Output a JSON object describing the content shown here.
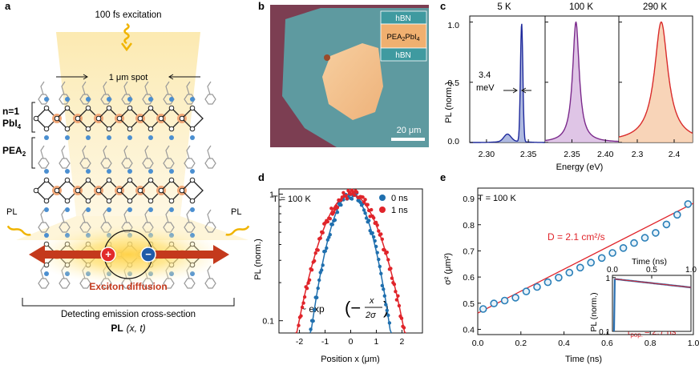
{
  "panels": {
    "a": {
      "letter": "a",
      "excitation": "100 fs excitation",
      "spot": "1 μm spot",
      "layer_n1": "n=1",
      "layer_pbi": "PbI",
      "layer_pbi_sub": "4",
      "layer_pea": "PEA",
      "layer_pea_sub": "2",
      "pl_left": "PL",
      "pl_right": "PL",
      "diffusion": "Exciton diffusion",
      "detecting": "Detecting emission cross-section",
      "pl_formula_bold": "PL",
      "pl_formula_rest": "(x, t)",
      "plus": "+",
      "minus": "−"
    },
    "b": {
      "letter": "b",
      "hbn_top": "hBN",
      "pea_label": "PEA",
      "pea_sub1": "2",
      "pea_mid": "PbI",
      "pea_sub2": "4",
      "hbn_bottom": "hBN",
      "scale_bar": "20 μm"
    },
    "c": {
      "letter": "c",
      "temps": [
        "5 K",
        "100 K",
        "290 K"
      ],
      "ylabel": "PL (norm.)",
      "xlabel": "Energy (eV)",
      "yticks": [
        "0.0",
        "0.5",
        "1.0"
      ],
      "xticks_5K": [
        "2.30",
        "2.35"
      ],
      "xticks_100K": [
        "2.35",
        "2.40"
      ],
      "xticks_290K": [
        "2.3",
        "2.4"
      ],
      "fwhm_value": "3.4",
      "fwhm_unit": "meV",
      "colors": [
        "#1f2a9c",
        "#7b2a8c",
        "#d92b2b"
      ]
    },
    "d": {
      "letter": "d",
      "temp": "T = 100 K",
      "legend": [
        "0 ns",
        "1 ns"
      ],
      "legend_colors": [
        "#1f6fae",
        "#e0242a"
      ],
      "ylabel": "PL (norm.)",
      "xlabel": "Position x (μm)",
      "yticks": [
        "1",
        "0.1"
      ],
      "xticks": [
        "-2",
        "-1",
        "0",
        "1",
        "2"
      ],
      "fit_prefix": "~ exp",
      "fit_num": "x",
      "fit_den": "2σ"
    },
    "e": {
      "letter": "e",
      "temp": "T = 100 K",
      "diffusivity": "D = 2.1 cm²/s",
      "ylabel": "σ² (μm²)",
      "xlabel": "Time (ns)",
      "yticks": [
        "0.4",
        "0.5",
        "0.6",
        "0.7",
        "0.8",
        "0.9"
      ],
      "xticks": [
        "0.0",
        "0.2",
        "0.4",
        "0.6",
        "0.8",
        "1.0"
      ],
      "inset_xlabel": "Time (ns)",
      "inset_xticks": [
        "0.0",
        "0.5",
        "1.0"
      ],
      "inset_ylabel": "PL (norm.)",
      "inset_yticks": [
        "1",
        "0.1"
      ],
      "tau": "τ",
      "tau_sub": "pop.",
      "tau_value": "= 2.7 ns"
    }
  },
  "chart_data": [
    {
      "panel": "c",
      "type": "line",
      "series": [
        {
          "name": "5 K",
          "x_range": [
            2.28,
            2.37
          ],
          "peak_x": 2.342,
          "peak_y": 1.0,
          "fwhm_meV": 3.4,
          "shoulder_x": 2.325,
          "shoulder_y": 0.06
        },
        {
          "name": "100 K",
          "x_range": [
            2.31,
            2.42
          ],
          "peak_x": 2.356,
          "peak_y": 1.0
        },
        {
          "name": "290 K",
          "x_range": [
            2.25,
            2.45
          ],
          "peak_x": 2.365,
          "peak_y": 1.0
        }
      ],
      "ylim": [
        0,
        1.05
      ],
      "xlabel": "Energy (eV)",
      "ylabel": "PL (norm.)"
    },
    {
      "panel": "d",
      "type": "scatter",
      "yscale": "log",
      "series": [
        {
          "name": "0 ns",
          "sigma2_um2": 0.48
        },
        {
          "name": "1 ns",
          "sigma2_um2": 0.88
        }
      ],
      "xlim": [
        -2.8,
        2.8
      ],
      "ylim": [
        0.08,
        1.1
      ],
      "xlabel": "Position x (μm)",
      "ylabel": "PL (norm.)"
    },
    {
      "panel": "e",
      "type": "scatter",
      "x": [
        0.025,
        0.075,
        0.125,
        0.175,
        0.225,
        0.275,
        0.325,
        0.375,
        0.425,
        0.475,
        0.525,
        0.575,
        0.625,
        0.675,
        0.725,
        0.775,
        0.825,
        0.875,
        0.925,
        0.975
      ],
      "y": [
        0.478,
        0.499,
        0.51,
        0.521,
        0.545,
        0.562,
        0.58,
        0.598,
        0.617,
        0.636,
        0.655,
        0.673,
        0.692,
        0.711,
        0.73,
        0.75,
        0.769,
        0.801,
        0.838,
        0.879
      ],
      "fit": {
        "slope": 0.42,
        "intercept": 0.462
      },
      "xlim": [
        0,
        1.0
      ],
      "ylim": [
        0.38,
        0.94
      ],
      "xlabel": "Time (ns)",
      "ylabel": "σ² (μm²)",
      "inset": {
        "type": "line",
        "yscale": "log",
        "tau_ns": 2.7,
        "xlim": [
          0,
          1.0
        ],
        "ylim": [
          0.1,
          1.1
        ]
      }
    }
  ]
}
